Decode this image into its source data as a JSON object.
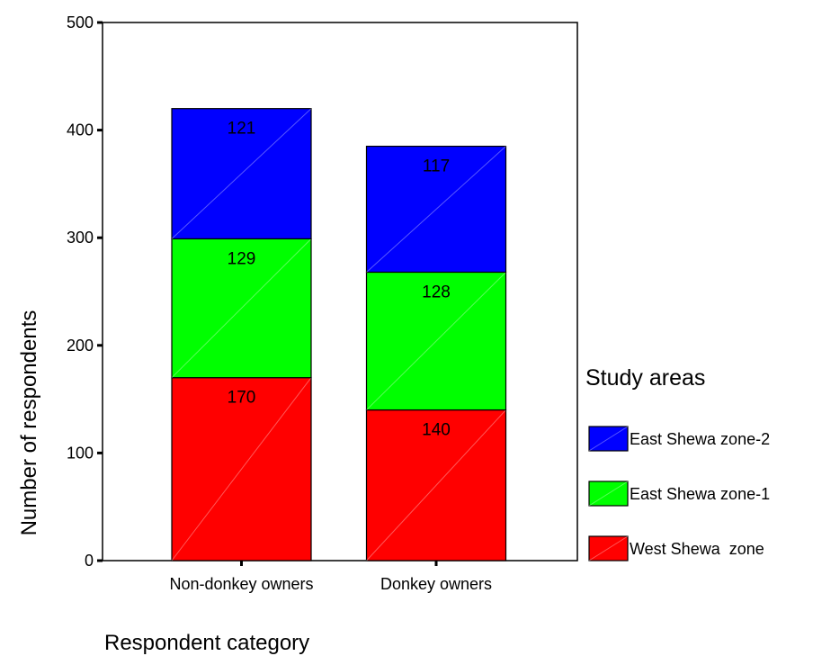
{
  "chart_data": {
    "type": "bar",
    "stacked": true,
    "xlabel": "Respondent category",
    "ylabel": "Number of respondents",
    "ylim": [
      0,
      500
    ],
    "yticks": [
      0,
      100,
      200,
      300,
      400,
      500
    ],
    "grid": false,
    "categories": [
      "Non-donkey owners",
      "Donkey owners"
    ],
    "series": [
      {
        "name": "West Shewa  zone",
        "values": [
          170,
          140
        ],
        "color": "#ff0000"
      },
      {
        "name": "East Shewa zone-1",
        "values": [
          129,
          128
        ],
        "color": "#00ff00"
      },
      {
        "name": "East Shewa zone-2",
        "values": [
          121,
          117
        ],
        "color": "#0000ff"
      }
    ],
    "value_labels": [
      [
        "170",
        "140"
      ],
      [
        "129",
        "128"
      ],
      [
        "121",
        "117"
      ]
    ],
    "legend": {
      "title": "Study areas",
      "placement": "right",
      "order": [
        2,
        1,
        0
      ]
    }
  }
}
